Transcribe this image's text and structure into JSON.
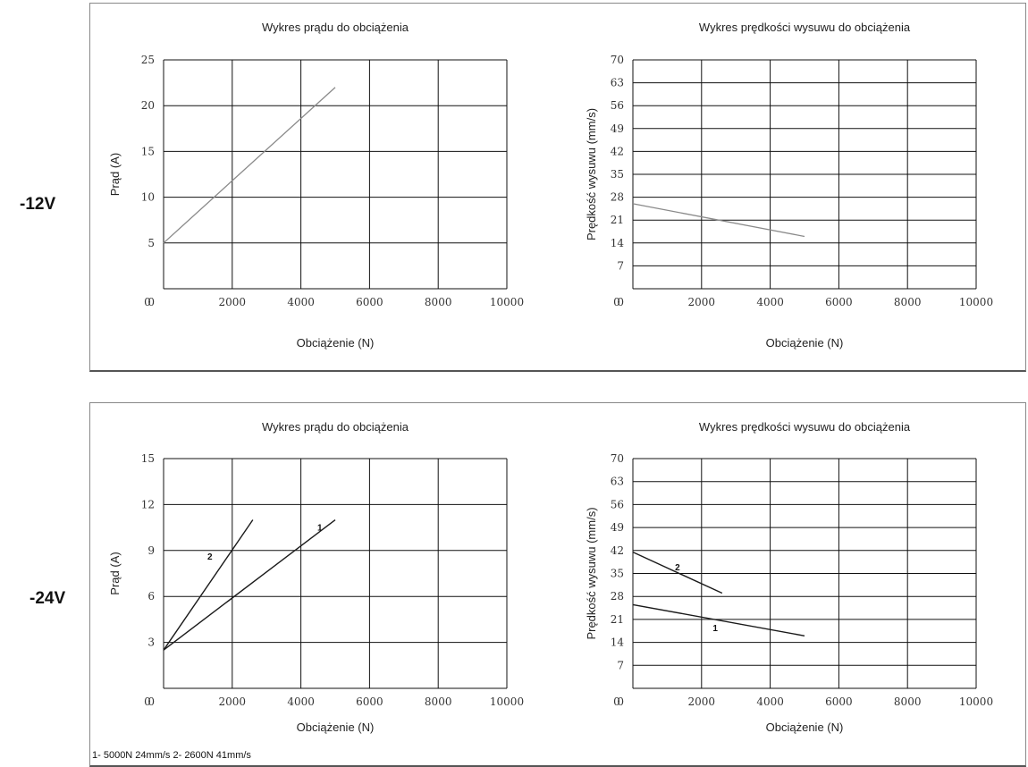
{
  "sections": [
    {
      "voltage_label": "-12V"
    },
    {
      "voltage_label": "-24V"
    }
  ],
  "footnote": "1- 5000N 24mm/s  2- 2600N 41mm/s",
  "colors": {
    "grid": "#111111",
    "line_12v": "#8a8a8a",
    "line_24v": "#1a1a1a"
  },
  "chart_data": [
    {
      "type": "line",
      "title": "Wykres prądu do obciążenia",
      "xlabel": "Obciążenie (N)",
      "ylabel": "Prąd (A)",
      "xlim": [
        0,
        10000
      ],
      "ylim": [
        0,
        25
      ],
      "xticks": [
        0,
        2000,
        4000,
        6000,
        8000,
        10000
      ],
      "yticks": [
        0,
        5,
        10,
        15,
        20,
        25
      ],
      "grid": true,
      "series": [
        {
          "x": [
            0,
            5000
          ],
          "y": [
            5,
            22
          ]
        }
      ]
    },
    {
      "type": "line",
      "title": "Wykres prędkości wysuwu do obciążenia",
      "xlabel": "Obciążenie (N)",
      "ylabel": "Prędkość wysuwu (mm/s)",
      "xlim": [
        0,
        10000
      ],
      "ylim": [
        0,
        70
      ],
      "xticks": [
        0,
        2000,
        4000,
        6000,
        8000,
        10000
      ],
      "yticks": [
        0,
        7,
        14,
        21,
        28,
        35,
        42,
        49,
        56,
        63,
        70
      ],
      "grid": true,
      "series": [
        {
          "x": [
            0,
            5000
          ],
          "y": [
            26,
            16
          ]
        }
      ]
    },
    {
      "type": "line",
      "title": "Wykres prądu do obciążenia",
      "xlabel": "Obciążenie (N)",
      "ylabel": "Prąd (A)",
      "xlim": [
        0,
        10000
      ],
      "ylim": [
        0,
        15
      ],
      "xticks": [
        0,
        2000,
        4000,
        6000,
        8000,
        10000
      ],
      "yticks": [
        0,
        3,
        6,
        9,
        12,
        15
      ],
      "grid": true,
      "series": [
        {
          "name": "1",
          "x": [
            0,
            5000
          ],
          "y": [
            2.5,
            11
          ]
        },
        {
          "name": "2",
          "x": [
            0,
            2600
          ],
          "y": [
            2.5,
            11
          ]
        }
      ]
    },
    {
      "type": "line",
      "title": "Wykres prędkości wysuwu do obciążenia",
      "xlabel": "Obciążenie (N)",
      "ylabel": "Prędkość wysuwu (mm/s)",
      "xlim": [
        0,
        10000
      ],
      "ylim": [
        0,
        70
      ],
      "xticks": [
        0,
        2000,
        4000,
        6000,
        8000,
        10000
      ],
      "yticks": [
        0,
        7,
        14,
        21,
        28,
        35,
        42,
        49,
        56,
        63,
        70
      ],
      "grid": true,
      "series": [
        {
          "name": "1",
          "x": [
            0,
            5000
          ],
          "y": [
            25.5,
            16
          ]
        },
        {
          "name": "2",
          "x": [
            0,
            2600
          ],
          "y": [
            41.5,
            29
          ]
        }
      ]
    }
  ]
}
